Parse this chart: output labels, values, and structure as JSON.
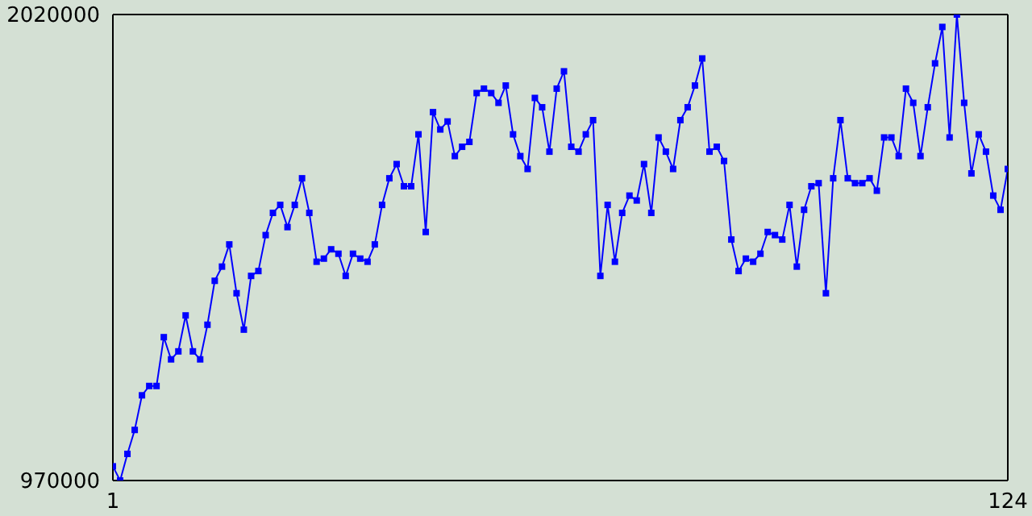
{
  "chart_data": {
    "type": "line",
    "x": [
      1,
      2,
      3,
      4,
      5,
      6,
      7,
      8,
      9,
      10,
      11,
      12,
      13,
      14,
      15,
      16,
      17,
      18,
      19,
      20,
      21,
      22,
      23,
      24,
      25,
      26,
      27,
      28,
      29,
      30,
      31,
      32,
      33,
      34,
      35,
      36,
      37,
      38,
      39,
      40,
      41,
      42,
      43,
      44,
      45,
      46,
      47,
      48,
      49,
      50,
      51,
      52,
      53,
      54,
      55,
      56,
      57,
      58,
      59,
      60,
      61,
      62,
      63,
      64,
      65,
      66,
      67,
      68,
      69,
      70,
      71,
      72,
      73,
      74,
      75,
      76,
      77,
      78,
      79,
      80,
      81,
      82,
      83,
      84,
      85,
      86,
      87,
      88,
      89,
      90,
      91,
      92,
      93,
      94,
      95,
      96,
      97,
      98,
      99,
      100,
      101,
      102,
      103,
      104,
      105,
      106,
      107,
      108,
      109,
      110,
      111,
      112,
      113,
      114,
      115,
      116,
      117,
      118,
      119,
      120,
      121,
      122,
      123,
      124
    ],
    "series": [
      {
        "color": "#0000ff",
        "values": [
          1002000,
          970000,
          1030000,
          1084000,
          1162000,
          1183000,
          1183000,
          1293000,
          1243000,
          1261000,
          1342000,
          1261000,
          1243000,
          1321000,
          1420000,
          1452000,
          1502000,
          1392000,
          1310000,
          1431000,
          1442000,
          1523000,
          1573000,
          1591000,
          1541000,
          1591000,
          1651000,
          1573000,
          1463000,
          1470000,
          1491000,
          1481000,
          1431000,
          1481000,
          1470000,
          1463000,
          1502000,
          1591000,
          1651000,
          1683000,
          1633000,
          1633000,
          1750000,
          1530000,
          1800000,
          1761000,
          1779000,
          1701000,
          1722000,
          1733000,
          1843000,
          1853000,
          1843000,
          1821000,
          1860000,
          1750000,
          1701000,
          1672000,
          1832000,
          1811000,
          1711000,
          1853000,
          1892000,
          1722000,
          1711000,
          1750000,
          1782000,
          1431000,
          1591000,
          1463000,
          1573000,
          1612000,
          1601000,
          1683000,
          1573000,
          1743000,
          1711000,
          1672000,
          1782000,
          1811000,
          1860000,
          1921000,
          1711000,
          1722000,
          1690000,
          1513000,
          1442000,
          1470000,
          1463000,
          1481000,
          1530000,
          1523000,
          1513000,
          1591000,
          1452000,
          1580000,
          1633000,
          1640000,
          1392000,
          1651000,
          1782000,
          1651000,
          1640000,
          1640000,
          1651000,
          1623000,
          1743000,
          1743000,
          1701000,
          1853000,
          1821000,
          1701000,
          1811000,
          1910000,
          1992000,
          1743000,
          2020000,
          1821000,
          1662000,
          1750000,
          1711000,
          1612000,
          1580000,
          1672000
        ]
      }
    ],
    "xlim": [
      1,
      124
    ],
    "xticks": [
      1,
      124
    ],
    "ylim": [
      970000,
      2020000
    ],
    "yticks": [
      970000,
      2020000
    ],
    "marker": "square",
    "line_style": "solid"
  }
}
